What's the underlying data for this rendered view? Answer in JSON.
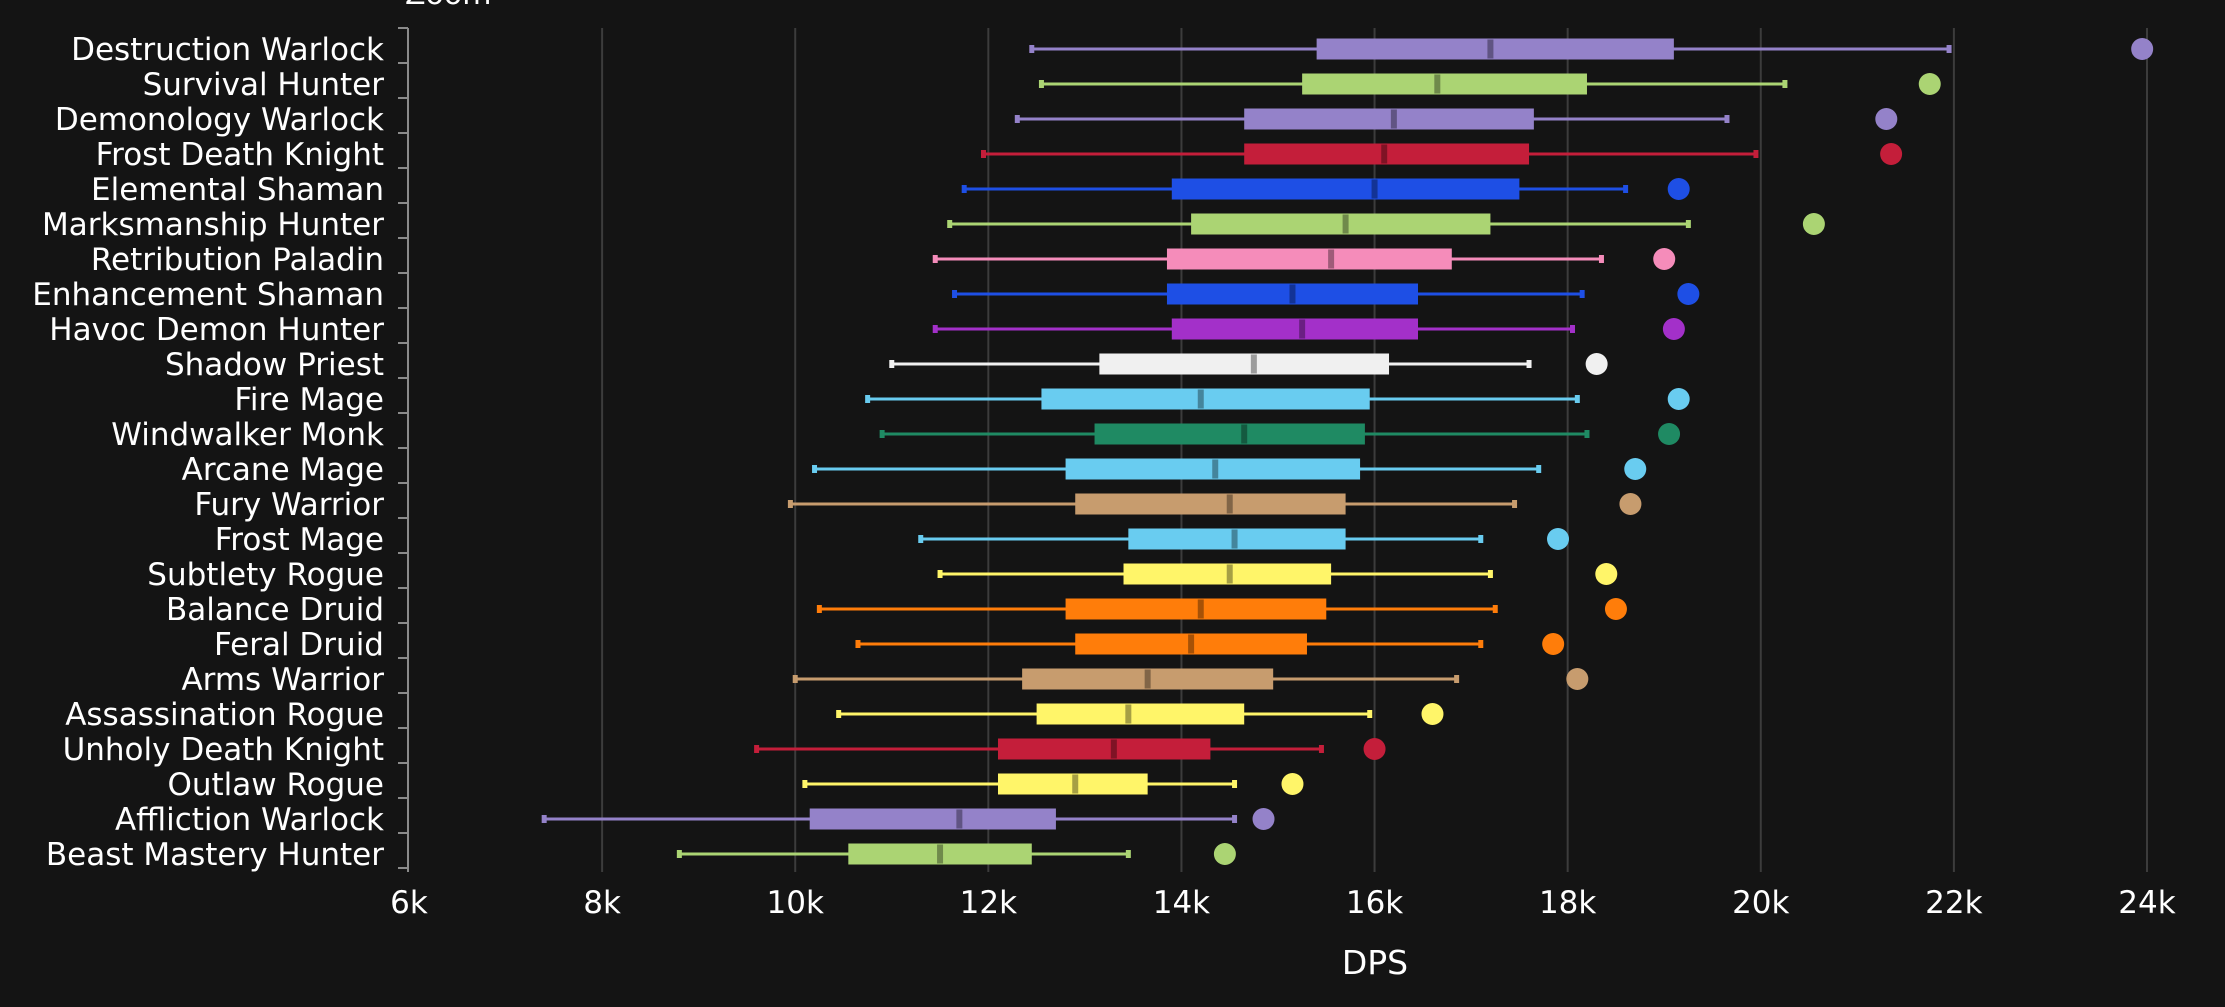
{
  "chart_data": {
    "type": "box",
    "title": "Zoom",
    "xlabel": "DPS",
    "ylabel": "",
    "xlim": [
      6000,
      24000
    ],
    "tick_values": [
      6000,
      8000,
      10000,
      12000,
      14000,
      16000,
      18000,
      20000,
      22000,
      24000
    ],
    "tick_labels": [
      "6k",
      "8k",
      "10k",
      "12k",
      "14k",
      "16k",
      "18k",
      "20k",
      "22k",
      "24k"
    ],
    "series": [
      {
        "name": "Destruction Warlock",
        "color": "#9482c9",
        "min": 12450,
        "q1": 15400,
        "median": 17200,
        "q3": 19100,
        "max": 21950,
        "outlier": 23950
      },
      {
        "name": "Survival Hunter",
        "color": "#abd473",
        "min": 12550,
        "q1": 15250,
        "median": 16650,
        "q3": 18200,
        "max": 20250,
        "outlier": 21750
      },
      {
        "name": "Demonology Warlock",
        "color": "#9482c9",
        "min": 12300,
        "q1": 14650,
        "median": 16200,
        "q3": 17650,
        "max": 19650,
        "outlier": 21300
      },
      {
        "name": "Frost Death Knight",
        "color": "#c41e3a",
        "min": 11950,
        "q1": 14650,
        "median": 16100,
        "q3": 17600,
        "max": 19950,
        "outlier": 21350
      },
      {
        "name": "Elemental Shaman",
        "color": "#1e4fe5",
        "min": 11750,
        "q1": 13900,
        "median": 16000,
        "q3": 17500,
        "max": 18600,
        "outlier": 19150
      },
      {
        "name": "Marksmanship Hunter",
        "color": "#abd473",
        "min": 11600,
        "q1": 14100,
        "median": 15700,
        "q3": 17200,
        "max": 19250,
        "outlier": 20550
      },
      {
        "name": "Retribution Paladin",
        "color": "#f58cba",
        "min": 11450,
        "q1": 13850,
        "median": 15550,
        "q3": 16800,
        "max": 18350,
        "outlier": 19000
      },
      {
        "name": "Enhancement Shaman",
        "color": "#1e4fe5",
        "min": 11650,
        "q1": 13850,
        "median": 15150,
        "q3": 16450,
        "max": 18150,
        "outlier": 19250
      },
      {
        "name": "Havoc Demon Hunter",
        "color": "#a330c9",
        "min": 11450,
        "q1": 13900,
        "median": 15250,
        "q3": 16450,
        "max": 18050,
        "outlier": 19100
      },
      {
        "name": "Shadow Priest",
        "color": "#f0f0f0",
        "min": 11000,
        "q1": 13150,
        "median": 14750,
        "q3": 16150,
        "max": 17600,
        "outlier": 18300
      },
      {
        "name": "Fire Mage",
        "color": "#69ccf0",
        "min": 10750,
        "q1": 12550,
        "median": 14200,
        "q3": 15950,
        "max": 18100,
        "outlier": 19150
      },
      {
        "name": "Windwalker Monk",
        "color": "#1f8a63",
        "min": 10900,
        "q1": 13100,
        "median": 14650,
        "q3": 15900,
        "max": 18200,
        "outlier": 19050
      },
      {
        "name": "Arcane Mage",
        "color": "#69ccf0",
        "min": 10200,
        "q1": 12800,
        "median": 14350,
        "q3": 15850,
        "max": 17700,
        "outlier": 18700
      },
      {
        "name": "Fury Warrior",
        "color": "#c79c6e",
        "min": 9950,
        "q1": 12900,
        "median": 14500,
        "q3": 15700,
        "max": 17450,
        "outlier": 18650
      },
      {
        "name": "Frost Mage",
        "color": "#69ccf0",
        "min": 11300,
        "q1": 13450,
        "median": 14550,
        "q3": 15700,
        "max": 17100,
        "outlier": 17900
      },
      {
        "name": "Subtlety Rogue",
        "color": "#fff569",
        "min": 11500,
        "q1": 13400,
        "median": 14500,
        "q3": 15550,
        "max": 17200,
        "outlier": 18400
      },
      {
        "name": "Balance Druid",
        "color": "#ff7d0a",
        "min": 10250,
        "q1": 12800,
        "median": 14200,
        "q3": 15500,
        "max": 17250,
        "outlier": 18500
      },
      {
        "name": "Feral Druid",
        "color": "#ff7d0a",
        "min": 10650,
        "q1": 12900,
        "median": 14100,
        "q3": 15300,
        "max": 17100,
        "outlier": 17850
      },
      {
        "name": "Arms Warrior",
        "color": "#c79c6e",
        "min": 10000,
        "q1": 12350,
        "median": 13650,
        "q3": 14950,
        "max": 16850,
        "outlier": 18100
      },
      {
        "name": "Assassination Rogue",
        "color": "#fff569",
        "min": 10450,
        "q1": 12500,
        "median": 13450,
        "q3": 14650,
        "max": 15950,
        "outlier": 16600
      },
      {
        "name": "Unholy Death Knight",
        "color": "#c41e3a",
        "min": 9600,
        "q1": 12100,
        "median": 13300,
        "q3": 14300,
        "max": 15450,
        "outlier": 16000
      },
      {
        "name": "Outlaw Rogue",
        "color": "#fff569",
        "min": 10100,
        "q1": 12100,
        "median": 12900,
        "q3": 13650,
        "max": 14550,
        "outlier": 15150
      },
      {
        "name": "Affliction Warlock",
        "color": "#9482c9",
        "min": 7400,
        "q1": 10150,
        "median": 11700,
        "q3": 12700,
        "max": 14550,
        "outlier": 14850
      },
      {
        "name": "Beast Mastery Hunter",
        "color": "#abd473",
        "min": 8800,
        "q1": 10550,
        "median": 11500,
        "q3": 12450,
        "max": 13450,
        "outlier": 14450
      }
    ]
  }
}
